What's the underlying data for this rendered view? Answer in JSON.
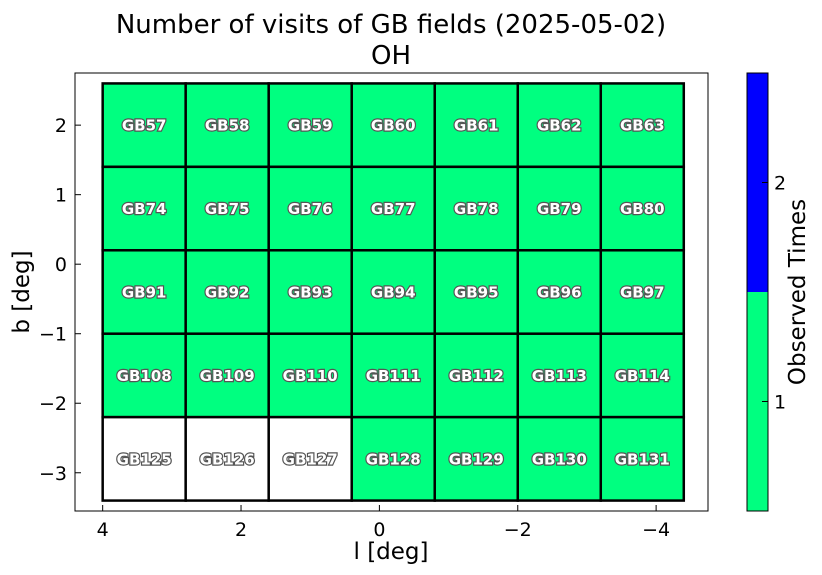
{
  "chart_data": {
    "type": "heatmap",
    "title": "Number of visits of GB fields (2025-05-02)",
    "subtitle": "OH",
    "xlabel": "l [deg]",
    "ylabel": "b [deg]",
    "xlim": [
      4.4,
      -4.75
    ],
    "ylim": [
      -3.55,
      2.75
    ],
    "x_ticks": [
      4,
      2,
      0,
      -2,
      -4
    ],
    "x_tick_labels": [
      "4",
      "2",
      "0",
      "−2",
      "−4"
    ],
    "y_ticks": [
      2,
      1,
      0,
      -1,
      -2,
      -3
    ],
    "y_tick_labels": [
      "2",
      "1",
      "0",
      "−1",
      "−2",
      "−3"
    ],
    "grid": false,
    "colorbar": {
      "label": "Observed Times",
      "ticks": [
        1,
        2
      ],
      "tick_labels": [
        "1",
        "2"
      ],
      "range": [
        0.5,
        2.5
      ],
      "colors": [
        {
          "value": 1,
          "color": "#00ff80"
        },
        {
          "value": 2,
          "color": "#0000ff"
        }
      ]
    },
    "unobserved_color": "#ffffff",
    "cell_width_deg": 1.2,
    "cell_height_deg": 1.2,
    "fields": [
      {
        "name": "GB57",
        "l": 3.4,
        "b": 2.0,
        "count": 1
      },
      {
        "name": "GB58",
        "l": 2.2,
        "b": 2.0,
        "count": 1
      },
      {
        "name": "GB59",
        "l": 1.0,
        "b": 2.0,
        "count": 1
      },
      {
        "name": "GB60",
        "l": -0.2,
        "b": 2.0,
        "count": 1
      },
      {
        "name": "GB61",
        "l": -1.4,
        "b": 2.0,
        "count": 1
      },
      {
        "name": "GB62",
        "l": -2.6,
        "b": 2.0,
        "count": 1
      },
      {
        "name": "GB63",
        "l": -3.8,
        "b": 2.0,
        "count": 1
      },
      {
        "name": "GB74",
        "l": 3.4,
        "b": 0.8,
        "count": 1
      },
      {
        "name": "GB75",
        "l": 2.2,
        "b": 0.8,
        "count": 1
      },
      {
        "name": "GB76",
        "l": 1.0,
        "b": 0.8,
        "count": 1
      },
      {
        "name": "GB77",
        "l": -0.2,
        "b": 0.8,
        "count": 1
      },
      {
        "name": "GB78",
        "l": -1.4,
        "b": 0.8,
        "count": 1
      },
      {
        "name": "GB79",
        "l": -2.6,
        "b": 0.8,
        "count": 1
      },
      {
        "name": "GB80",
        "l": -3.8,
        "b": 0.8,
        "count": 1
      },
      {
        "name": "GB91",
        "l": 3.4,
        "b": -0.4,
        "count": 1
      },
      {
        "name": "GB92",
        "l": 2.2,
        "b": -0.4,
        "count": 1
      },
      {
        "name": "GB93",
        "l": 1.0,
        "b": -0.4,
        "count": 1
      },
      {
        "name": "GB94",
        "l": -0.2,
        "b": -0.4,
        "count": 1
      },
      {
        "name": "GB95",
        "l": -1.4,
        "b": -0.4,
        "count": 1
      },
      {
        "name": "GB96",
        "l": -2.6,
        "b": -0.4,
        "count": 1
      },
      {
        "name": "GB97",
        "l": -3.8,
        "b": -0.4,
        "count": 1
      },
      {
        "name": "GB108",
        "l": 3.4,
        "b": -1.6,
        "count": 1
      },
      {
        "name": "GB109",
        "l": 2.2,
        "b": -1.6,
        "count": 1
      },
      {
        "name": "GB110",
        "l": 1.0,
        "b": -1.6,
        "count": 1
      },
      {
        "name": "GB111",
        "l": -0.2,
        "b": -1.6,
        "count": 1
      },
      {
        "name": "GB112",
        "l": -1.4,
        "b": -1.6,
        "count": 1
      },
      {
        "name": "GB113",
        "l": -2.6,
        "b": -1.6,
        "count": 1
      },
      {
        "name": "GB114",
        "l": -3.8,
        "b": -1.6,
        "count": 1
      },
      {
        "name": "GB125",
        "l": 3.4,
        "b": -2.8,
        "count": 0
      },
      {
        "name": "GB126",
        "l": 2.2,
        "b": -2.8,
        "count": 0
      },
      {
        "name": "GB127",
        "l": 1.0,
        "b": -2.8,
        "count": 0
      },
      {
        "name": "GB128",
        "l": -0.2,
        "b": -2.8,
        "count": 1
      },
      {
        "name": "GB129",
        "l": -1.4,
        "b": -2.8,
        "count": 1
      },
      {
        "name": "GB130",
        "l": -2.6,
        "b": -2.8,
        "count": 1
      },
      {
        "name": "GB131",
        "l": -3.8,
        "b": -2.8,
        "count": 1
      }
    ]
  }
}
